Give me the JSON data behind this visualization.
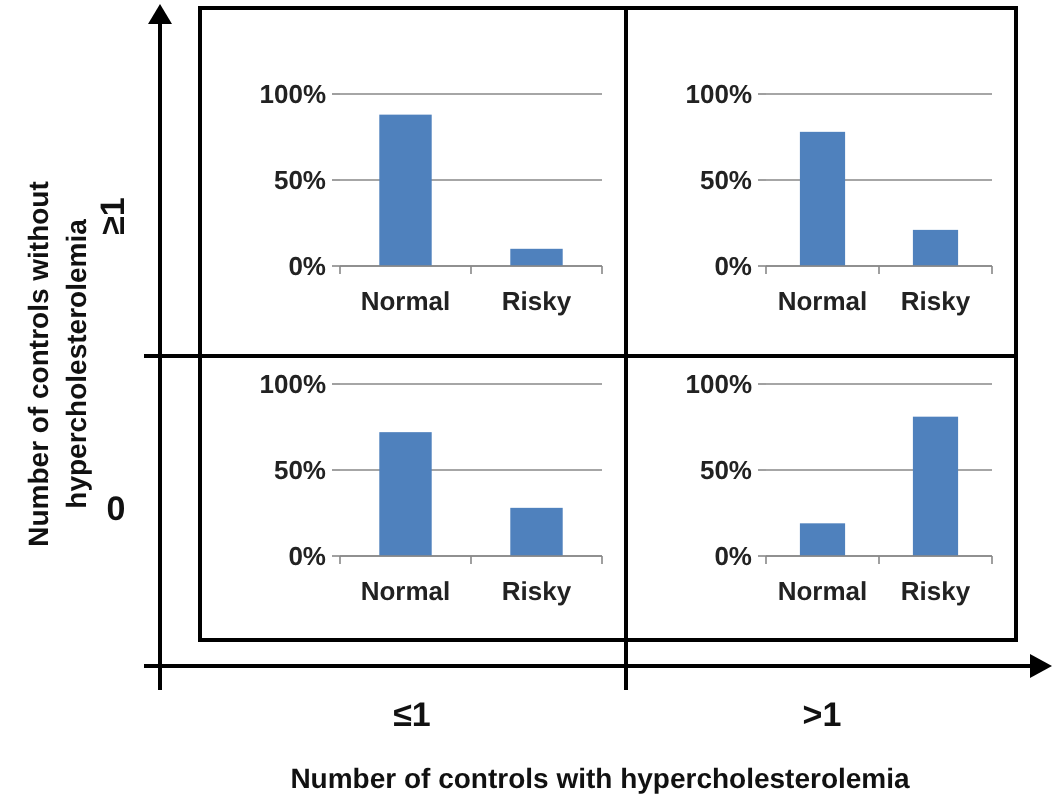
{
  "chart_data": [
    {
      "type": "bar",
      "categories": [
        "Normal",
        "Risky"
      ],
      "values": [
        88,
        10
      ],
      "color": "#4f81bd",
      "ylim": [
        0,
        100
      ],
      "yticks": [
        {
          "value": 0,
          "label": "0%"
        },
        {
          "value": 50,
          "label": "50%"
        },
        {
          "value": 100,
          "label": "100%"
        }
      ],
      "grid": "y"
    },
    {
      "type": "bar",
      "categories": [
        "Normal",
        "Risky"
      ],
      "values": [
        78,
        21
      ],
      "color": "#4f81bd",
      "ylim": [
        0,
        100
      ],
      "yticks": [
        {
          "value": 0,
          "label": "0%"
        },
        {
          "value": 50,
          "label": "50%"
        },
        {
          "value": 100,
          "label": "100%"
        }
      ],
      "grid": "y"
    },
    {
      "type": "bar",
      "categories": [
        "Normal",
        "Risky"
      ],
      "values": [
        72,
        28
      ],
      "color": "#4f81bd",
      "ylim": [
        0,
        100
      ],
      "yticks": [
        {
          "value": 0,
          "label": "0%"
        },
        {
          "value": 50,
          "label": "50%"
        },
        {
          "value": 100,
          "label": "100%"
        }
      ],
      "grid": "y"
    },
    {
      "type": "bar",
      "categories": [
        "Normal",
        "Risky"
      ],
      "values": [
        19,
        81
      ],
      "color": "#4f81bd",
      "ylim": [
        0,
        100
      ],
      "yticks": [
        {
          "value": 0,
          "label": "0%"
        },
        {
          "value": 50,
          "label": "50%"
        },
        {
          "value": 100,
          "label": "100%"
        }
      ],
      "grid": "y"
    },
    {
      "type": "other",
      "xlabel": "Number of controls with hypercholesterolemia",
      "ylabel": "Number of controls without hypercholesterolemia",
      "annotations": [
        "≥1",
        "0",
        "≤1",
        ">1"
      ]
    }
  ]
}
